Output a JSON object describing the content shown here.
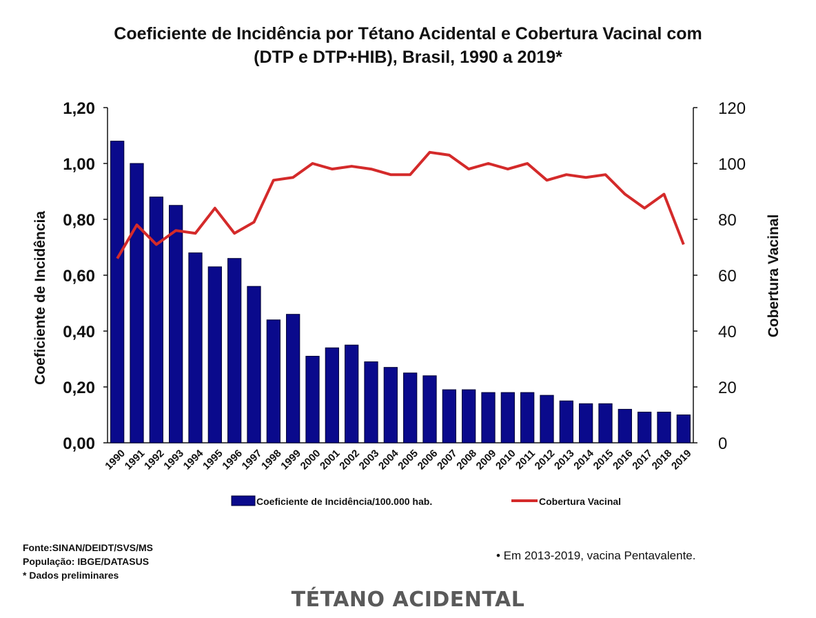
{
  "title_line1": "Coeficiente de Incidência por Tétano Acidental e Cobertura Vacinal com",
  "title_line2": "(DTP e DTP+HIB), Brasil, 1990 a 2019*",
  "source": {
    "line1": "Fonte:SINAN/DEIDT/SVS/MS",
    "line2": "População: IBGE/DATASUS",
    "line3": "* Dados preliminares"
  },
  "note": "• Em 2013-2019, vacina Pentavalente.",
  "footer": "TÉTANO ACIDENTAL",
  "colors": {
    "bar": "#0a0a8c",
    "line": "#d42a2a",
    "axis": "#111111"
  },
  "chart_data": {
    "type": "bar+line",
    "title": "Coeficiente de Incidência por Tétano Acidental e Cobertura Vacinal com (DTP e DTP+HIB), Brasil, 1990 a 2019*",
    "ylabel": "Coeficiente de Incidência",
    "ylabel_right": "Cobertura Vacinal",
    "ylim": [
      0,
      1.2
    ],
    "ylim_right": [
      0,
      120
    ],
    "yticks": [
      "0,00",
      "0,20",
      "0,40",
      "0,60",
      "0,80",
      "1,00",
      "1,20"
    ],
    "yticks_right": [
      "0",
      "20",
      "40",
      "60",
      "80",
      "100",
      "120"
    ],
    "categories": [
      "1990",
      "1991",
      "1992",
      "1993",
      "1994",
      "1995",
      "1996",
      "1997",
      "1998",
      "1999",
      "2000",
      "2001",
      "2002",
      "2003",
      "2004",
      "2005",
      "2006",
      "2007",
      "2008",
      "2009",
      "2010",
      "2011",
      "2012",
      "2013",
      "2014",
      "2015",
      "2016",
      "2017",
      "2018",
      "2019"
    ],
    "series": [
      {
        "name": "Coeficiente de Incidência/100.000 hab.",
        "type": "bar",
        "axis": "left",
        "values": [
          1.08,
          1.0,
          0.88,
          0.85,
          0.68,
          0.63,
          0.66,
          0.56,
          0.44,
          0.46,
          0.31,
          0.34,
          0.35,
          0.29,
          0.27,
          0.25,
          0.24,
          0.19,
          0.19,
          0.18,
          0.18,
          0.18,
          0.17,
          0.15,
          0.14,
          0.14,
          0.12,
          0.11,
          0.11,
          0.1
        ]
      },
      {
        "name": "Cobertura Vacinal",
        "type": "line",
        "axis": "right",
        "values": [
          66,
          78,
          71,
          76,
          75,
          84,
          75,
          79,
          94,
          95,
          100,
          98,
          99,
          98,
          96,
          96,
          104,
          103,
          98,
          100,
          98,
          100,
          94,
          96,
          95,
          96,
          89,
          84,
          89,
          71
        ]
      }
    ],
    "legend_position": "bottom-center",
    "grid": false
  }
}
